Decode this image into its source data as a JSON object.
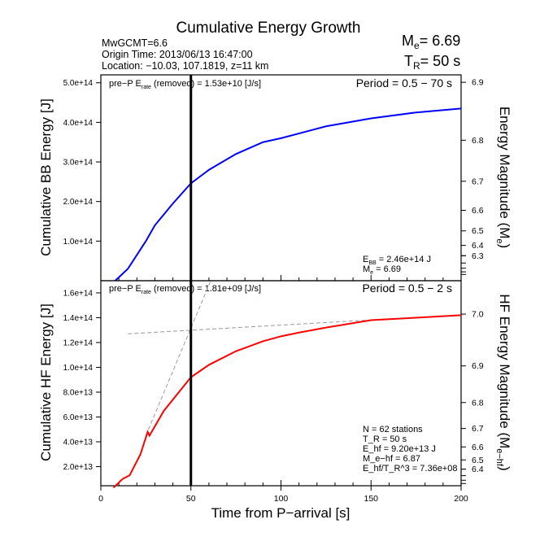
{
  "title": "Cumulative Energy Growth",
  "info": {
    "line1": "MwGCMT=6.6",
    "line2": "Origin Time: 2013/06/13 16:47:00",
    "line3": "Location: −10.03, 107.1819, z=11 km",
    "me_label": "M",
    "me_sub": "e",
    "me_value": "= 6.69",
    "tr_label": "T",
    "tr_sub": "R",
    "tr_value": "= 50 s"
  },
  "chart_data": [
    {
      "type": "line",
      "ylabel": "Cumulative BB Energy [J]",
      "ylabel_right": "Energy Magnitude (M",
      "ylabel_right_sub": "e",
      "ylabel_right_end": ")",
      "xlim": [
        0,
        200
      ],
      "ylim": [
        0,
        520000000000000.0
      ],
      "yticks": [
        "1.0e+14",
        "2.0e+14",
        "3.0e+14",
        "4.0e+14",
        "5.0e+14"
      ],
      "ytick_values": [
        100000000000000.0,
        200000000000000.0,
        300000000000000.0,
        400000000000000.0,
        500000000000000.0
      ],
      "right_ticks": [
        6.3,
        6.4,
        6.5,
        6.6,
        6.7,
        6.8,
        6.9
      ],
      "right_tick_labels": [
        "6.3",
        "6.4",
        "6.5",
        "6.6",
        "6.7",
        "6.8",
        "6.9"
      ],
      "pre_p_text": "pre−P E",
      "pre_p_sub": "rate",
      "pre_p_rest": " (removed) = 1.53e+10 [J/s]",
      "period": "Period = 0.5 − 70 s",
      "annot1": "E",
      "annot1_sub": "BB",
      "annot1_rest": " = 2.46e+14 J",
      "annot2": "M",
      "annot2_sub": "e",
      "annot2_rest": " = 6.69",
      "vline_x": 50,
      "color": "#0000ff",
      "series": [
        {
          "x": [
            8,
            15,
            25,
            30,
            40,
            50,
            60,
            75,
            90,
            100,
            125,
            150,
            175,
            200
          ],
          "y": [
            0,
            30000000000000.0,
            100000000000000.0,
            140000000000000.0,
            195000000000000.0,
            246000000000000.0,
            280000000000000.0,
            320000000000000.0,
            350000000000000.0,
            360000000000000.0,
            390000000000000.0,
            410000000000000.0,
            425000000000000.0,
            435000000000000.0
          ]
        }
      ]
    },
    {
      "type": "line",
      "xlabel": "Time from P−arrival [s]",
      "ylabel": "Cumulative HF Energy [J]",
      "ylabel_right": "HF Energy Magnitude (M",
      "ylabel_right_sub": "e−hf",
      "ylabel_right_end": ")",
      "xlim": [
        0,
        200
      ],
      "ylim": [
        4600000000000.0,
        169800000000000.0
      ],
      "xticks": [
        "0",
        "50",
        "100",
        "150",
        "200"
      ],
      "xtick_values": [
        0,
        50,
        100,
        150,
        200
      ],
      "yticks": [
        "2.0e+13",
        "4.0e+13",
        "6.0e+13",
        "8.0e+13",
        "1.0e+14",
        "1.2e+14",
        "1.4e+14",
        "1.6e+14"
      ],
      "ytick_values": [
        20000000000000.0,
        40000000000000.0,
        60000000000000.0,
        80000000000000.0,
        100000000000000.0,
        120000000000000.0,
        140000000000000.0,
        160000000000000.0
      ],
      "right_ticks": [
        6.4,
        6.5,
        6.6,
        6.7,
        6.8,
        6.9,
        7.0
      ],
      "right_tick_labels": [
        "6.4",
        "6.5",
        "6.6",
        "6.7",
        "6.8",
        "6.9",
        "7.0"
      ],
      "pre_p_text": "pre−P E",
      "pre_p_sub": "rate",
      "pre_p_rest": " (removed) = 1.81e+09 [J/s]",
      "period": "Period = 0.5 − 2 s",
      "annot_lines": [
        "N = 62 stations",
        "T_R = 50  s",
        "E_hf = 9.20e+13 J",
        "M_e−hf = 6.87",
        "E_hf/T_R^3 =  7.36e+08"
      ],
      "vline_x": 50,
      "color": "#ff0000",
      "series": [
        {
          "x": [
            7,
            12,
            16,
            22,
            26,
            27,
            35,
            45,
            50,
            60,
            75,
            90,
            100,
            110,
            125,
            150,
            175,
            200
          ],
          "y": [
            3000000000000.0,
            10000000000000.0,
            13000000000000.0,
            30000000000000.0,
            48000000000000.0,
            45000000000000.0,
            65000000000000.0,
            83000000000000.0,
            92000000000000.0,
            102000000000000.0,
            113000000000000.0,
            121000000000000.0,
            125000000000000.0,
            128000000000000.0,
            132000000000000.0,
            138000000000000.0,
            140000000000000.0,
            142000000000000.0
          ]
        }
      ],
      "dashed_lines": [
        {
          "x": [
            15,
            160
          ],
          "y": [
            127000000000000.0,
            139000000000000.0
          ]
        },
        {
          "x": [
            25,
            61
          ],
          "y": [
            45000000000000.0,
            169800000000000.0
          ]
        }
      ]
    }
  ]
}
